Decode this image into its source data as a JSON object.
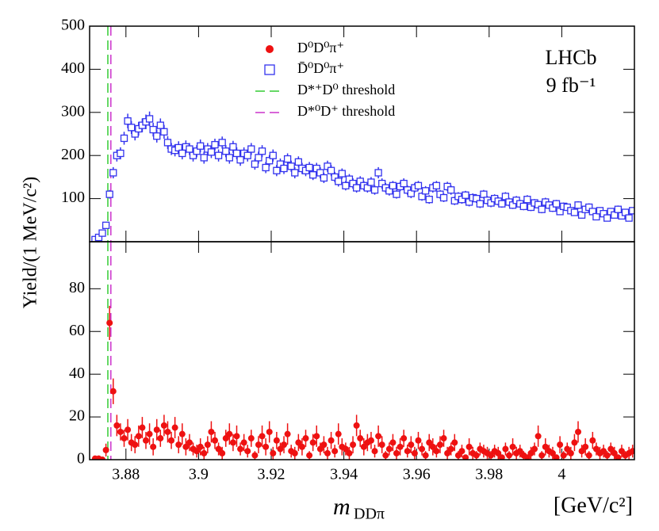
{
  "chart_data": [
    {
      "type": "scatter",
      "ylabel": "Yield/(1 MeV/c²)",
      "annotations": [
        "LHCb",
        "9 fb⁻¹"
      ],
      "xlim": [
        3.87,
        4.02
      ],
      "ylim": [
        0,
        500
      ],
      "yticks": [
        100,
        200,
        300,
        400,
        500
      ],
      "vlines": [
        {
          "name": "D*⁺D⁰ threshold",
          "x": 3.87502,
          "color": "#33cc33"
        },
        {
          "name": "D*⁰D⁺ threshold",
          "x": 3.87585,
          "color": "#cc33cc"
        }
      ],
      "x": [
        3.8715,
        3.8725,
        3.8735,
        3.8745,
        3.8755,
        3.8765,
        3.8775,
        3.8785,
        3.8795,
        3.8805,
        3.8815,
        3.8825,
        3.8835,
        3.8845,
        3.8855,
        3.8865,
        3.8875,
        3.8885,
        3.8895,
        3.8905,
        3.8915,
        3.8925,
        3.8935,
        3.8945,
        3.8955,
        3.8965,
        3.8975,
        3.8985,
        3.8995,
        3.9005,
        3.9015,
        3.9025,
        3.9035,
        3.9045,
        3.9055,
        3.9065,
        3.9075,
        3.9085,
        3.9095,
        3.9105,
        3.9115,
        3.9125,
        3.9135,
        3.9145,
        3.9155,
        3.9165,
        3.9175,
        3.9185,
        3.9195,
        3.9205,
        3.9215,
        3.9225,
        3.9235,
        3.9245,
        3.9255,
        3.9265,
        3.9275,
        3.9285,
        3.9295,
        3.9305,
        3.9315,
        3.9325,
        3.9335,
        3.9345,
        3.9355,
        3.9365,
        3.9375,
        3.9385,
        3.9395,
        3.9405,
        3.9415,
        3.9425,
        3.9435,
        3.9445,
        3.9455,
        3.9465,
        3.9475,
        3.9485,
        3.9495,
        3.9505,
        3.9515,
        3.9525,
        3.9535,
        3.9545,
        3.9555,
        3.9565,
        3.9575,
        3.9585,
        3.9595,
        3.9605,
        3.9615,
        3.9625,
        3.9635,
        3.9645,
        3.9655,
        3.9665,
        3.9675,
        3.9685,
        3.9695,
        3.9705,
        3.9715,
        3.9725,
        3.9735,
        3.9745,
        3.9755,
        3.9765,
        3.9775,
        3.9785,
        3.9795,
        3.9805,
        3.9815,
        3.9825,
        3.9835,
        3.9845,
        3.9855,
        3.9865,
        3.9875,
        3.9885,
        3.9895,
        3.9905,
        3.9915,
        3.9925,
        3.9935,
        3.9945,
        3.9955,
        3.9965,
        3.9975,
        3.9985,
        3.9995,
        4.0005,
        4.0015,
        4.0025,
        4.0035,
        4.0045,
        4.0055,
        4.0065,
        4.0075,
        4.0085,
        4.0095,
        4.0105,
        4.0115,
        4.0125,
        4.0135,
        4.0145,
        4.0155,
        4.0165,
        4.0175,
        4.0185,
        4.0195
      ],
      "series": [
        {
          "name": "D̄⁰D⁰π⁺",
          "color": "#3333ee",
          "marker": "square",
          "values": [
            5,
            10,
            20,
            38,
            110,
            160,
            200,
            205,
            240,
            280,
            265,
            250,
            262,
            270,
            278,
            285,
            260,
            245,
            270,
            255,
            230,
            215,
            212,
            218,
            205,
            220,
            215,
            200,
            210,
            222,
            195,
            215,
            208,
            225,
            200,
            230,
            210,
            195,
            220,
            205,
            190,
            205,
            200,
            215,
            180,
            195,
            210,
            172,
            188,
            200,
            165,
            180,
            170,
            192,
            175,
            160,
            185,
            170,
            165,
            172,
            155,
            170,
            160,
            148,
            175,
            165,
            150,
            140,
            158,
            130,
            145,
            135,
            125,
            140,
            130,
            125,
            138,
            120,
            160,
            135,
            125,
            118,
            130,
            110,
            128,
            135,
            120,
            112,
            125,
            130,
            105,
            118,
            98,
            125,
            130,
            110,
            102,
            128,
            120,
            95,
            105,
            98,
            108,
            92,
            102,
            100,
            88,
            110,
            96,
            90,
            100,
            94,
            88,
            105,
            92,
            85,
            96,
            88,
            82,
            98,
            80,
            90,
            86,
            75,
            92,
            85,
            78,
            88,
            70,
            82,
            80,
            72,
            68,
            85,
            62,
            75,
            80,
            70,
            58,
            72,
            65,
            55,
            70,
            62,
            75,
            60,
            68,
            55,
            72
          ],
          "errors": [
            2,
            3,
            4,
            6,
            10,
            13,
            14,
            14,
            15,
            17,
            15,
            15,
            16,
            16,
            17,
            17,
            16,
            15,
            16,
            16,
            15,
            14,
            14,
            15,
            14,
            15,
            14,
            14,
            14,
            15,
            14,
            14,
            14,
            14,
            14,
            14,
            14,
            14,
            14,
            14,
            14,
            14,
            14,
            14,
            13,
            14,
            14,
            13,
            13,
            14,
            13,
            13,
            13,
            13,
            13,
            13,
            13,
            13,
            13,
            13,
            12,
            13,
            13,
            12,
            13,
            13,
            12,
            12,
            12,
            11,
            12,
            12,
            11,
            12,
            11,
            11,
            12,
            11,
            13,
            12,
            11,
            11,
            11,
            10,
            11,
            12,
            11,
            11,
            11,
            11,
            10,
            11,
            10,
            11,
            11,
            10,
            10,
            11,
            11,
            10,
            10,
            10,
            10,
            10,
            10,
            10,
            10,
            10,
            10,
            10,
            10,
            10,
            9,
            10,
            10,
            9,
            10,
            9,
            9,
            10,
            9,
            9,
            9,
            9,
            10,
            9,
            9,
            9,
            8,
            9,
            9,
            8,
            8,
            9,
            8,
            9,
            9,
            8,
            8,
            8,
            8,
            7,
            8,
            8,
            9,
            8,
            8,
            7,
            8
          ]
        }
      ]
    },
    {
      "type": "scatter",
      "xlabel": "m",
      "xlabel_sub": "DDπ",
      "xunit": "[GeV/c²]",
      "xlim": [
        3.87,
        4.02
      ],
      "xticks": [
        3.88,
        3.9,
        3.92,
        3.94,
        3.96,
        3.98,
        4
      ],
      "ylim": [
        0,
        102
      ],
      "yticks": [
        0,
        20,
        40,
        60,
        80
      ],
      "x": [
        3.8715,
        3.8725,
        3.8735,
        3.8745,
        3.8755,
        3.8765,
        3.8775,
        3.8785,
        3.8795,
        3.8805,
        3.8815,
        3.8825,
        3.8835,
        3.8845,
        3.8855,
        3.8865,
        3.8875,
        3.8885,
        3.8895,
        3.8905,
        3.8915,
        3.8925,
        3.8935,
        3.8945,
        3.8955,
        3.8965,
        3.8975,
        3.8985,
        3.8995,
        3.9005,
        3.9015,
        3.9025,
        3.9035,
        3.9045,
        3.9055,
        3.9065,
        3.9075,
        3.9085,
        3.9095,
        3.9105,
        3.9115,
        3.9125,
        3.9135,
        3.9145,
        3.9155,
        3.9165,
        3.9175,
        3.9185,
        3.9195,
        3.9205,
        3.9215,
        3.9225,
        3.9235,
        3.9245,
        3.9255,
        3.9265,
        3.9275,
        3.9285,
        3.9295,
        3.9305,
        3.9315,
        3.9325,
        3.9335,
        3.9345,
        3.9355,
        3.9365,
        3.9375,
        3.9385,
        3.9395,
        3.9405,
        3.9415,
        3.9425,
        3.9435,
        3.9445,
        3.9455,
        3.9465,
        3.9475,
        3.9485,
        3.9495,
        3.9505,
        3.9515,
        3.9525,
        3.9535,
        3.9545,
        3.9555,
        3.9565,
        3.9575,
        3.9585,
        3.9595,
        3.9605,
        3.9615,
        3.9625,
        3.9635,
        3.9645,
        3.9655,
        3.9665,
        3.9675,
        3.9685,
        3.9695,
        3.9705,
        3.9715,
        3.9725,
        3.9735,
        3.9745,
        3.9755,
        3.9765,
        3.9775,
        3.9785,
        3.9795,
        3.9805,
        3.9815,
        3.9825,
        3.9835,
        3.9845,
        3.9855,
        3.9865,
        3.9875,
        3.9885,
        3.9895,
        3.9905,
        3.9915,
        3.9925,
        3.9935,
        3.9945,
        3.9955,
        3.9965,
        3.9975,
        3.9985,
        3.9995,
        4.0005,
        4.0015,
        4.0025,
        4.0035,
        4.0045,
        4.0055,
        4.0065,
        4.0075,
        4.0085,
        4.0095,
        4.0105,
        4.0115,
        4.0125,
        4.0135,
        4.0145,
        4.0155,
        4.0165,
        4.0175,
        4.0185,
        4.0195
      ],
      "series": [
        {
          "name": "D⁰D⁰π⁺",
          "color": "#ee1111",
          "marker": "circle",
          "values": [
            0.5,
            0.5,
            0,
            4.5,
            64,
            32,
            16,
            13,
            10,
            14,
            8,
            7,
            11,
            15,
            9,
            12,
            6,
            14,
            10,
            16,
            13,
            9,
            15,
            7,
            12,
            6,
            8,
            5,
            4,
            6,
            3,
            7,
            13,
            9,
            5,
            3,
            10,
            12,
            8,
            11,
            5,
            8,
            4,
            10,
            2,
            7,
            11,
            6,
            13,
            3,
            9,
            5,
            7,
            12,
            4,
            3,
            8,
            6,
            10,
            2,
            8,
            11,
            5,
            7,
            3,
            9,
            4,
            12,
            6,
            5,
            3,
            7,
            16,
            10,
            6,
            8,
            9,
            4,
            11,
            7,
            2,
            5,
            8,
            3,
            6,
            10,
            4,
            7,
            3,
            9,
            5,
            2,
            8,
            6,
            4,
            7,
            10,
            3,
            5,
            8,
            2,
            4,
            1,
            6,
            3,
            2,
            5,
            4,
            3,
            2,
            4,
            3,
            1,
            5,
            2,
            6,
            3,
            4,
            2,
            1,
            3,
            5,
            11,
            2,
            6,
            4,
            3,
            1,
            7,
            2,
            5,
            3,
            8,
            13,
            4,
            6,
            2,
            9,
            5,
            3,
            4,
            2,
            5,
            3,
            1,
            4,
            2,
            3,
            4
          ],
          "errors": [
            1,
            1,
            1,
            3,
            8,
            6,
            5,
            4,
            4,
            5,
            4,
            4,
            5,
            5,
            4,
            5,
            4,
            5,
            4,
            5,
            5,
            4,
            5,
            4,
            5,
            4,
            4,
            3,
            3,
            4,
            3,
            4,
            5,
            4,
            3,
            3,
            4,
            5,
            4,
            5,
            3,
            4,
            3,
            4,
            2,
            4,
            5,
            4,
            5,
            3,
            4,
            3,
            4,
            5,
            3,
            3,
            4,
            4,
            4,
            2,
            4,
            5,
            3,
            4,
            3,
            4,
            3,
            5,
            4,
            3,
            3,
            4,
            5,
            4,
            4,
            4,
            4,
            3,
            5,
            4,
            2,
            3,
            4,
            3,
            4,
            4,
            3,
            4,
            3,
            4,
            3,
            2,
            4,
            4,
            3,
            4,
            4,
            3,
            3,
            4,
            2,
            3,
            1,
            4,
            3,
            2,
            3,
            3,
            3,
            2,
            3,
            3,
            1,
            3,
            2,
            4,
            3,
            3,
            2,
            1,
            3,
            3,
            5,
            2,
            4,
            3,
            3,
            1,
            4,
            2,
            3,
            3,
            4,
            5,
            3,
            4,
            2,
            4,
            3,
            3,
            3,
            2,
            3,
            3,
            1,
            3,
            2,
            3,
            3
          ]
        }
      ]
    }
  ]
}
